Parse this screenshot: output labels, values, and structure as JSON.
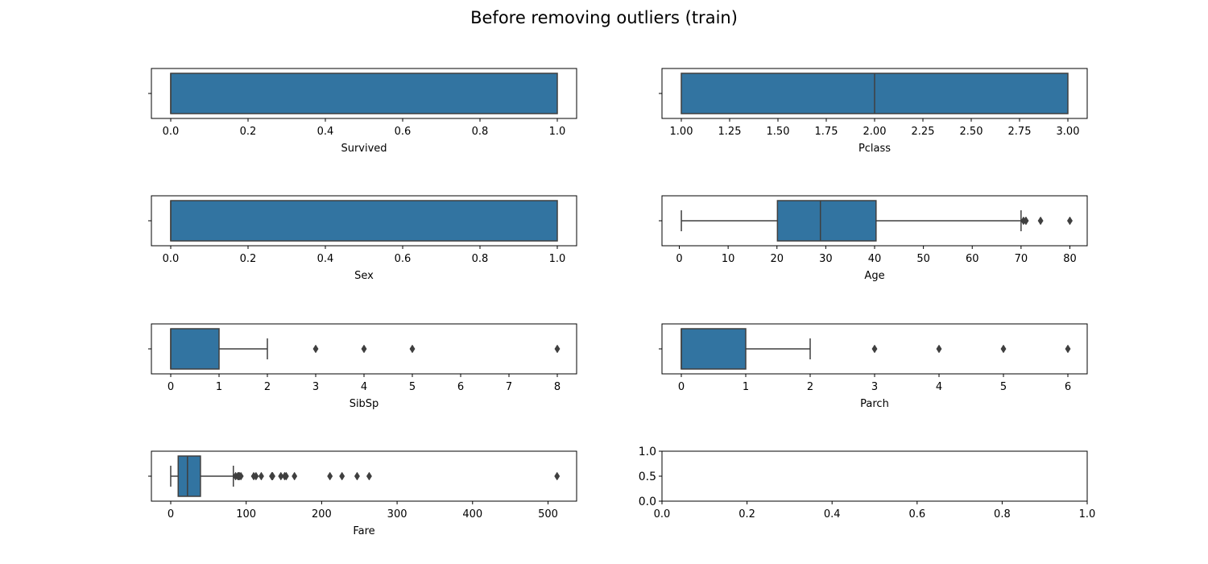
{
  "figure": {
    "title": "Before removing outliers (train)"
  },
  "colors": {
    "box_fill": "#3274a1",
    "line": "#3f3f3f",
    "axis": "#000000",
    "background": "#ffffff"
  },
  "chart_data": [
    {
      "type": "box",
      "xlabel": "Survived",
      "xlim": [
        -0.05,
        1.05
      ],
      "ticks": [
        0.0,
        0.2,
        0.4,
        0.6,
        0.8,
        1.0
      ],
      "tick_labels": [
        "0.0",
        "0.2",
        "0.4",
        "0.6",
        "0.8",
        "1.0"
      ],
      "box": {
        "whisker_low": 0,
        "q1": 0,
        "median": 0,
        "q3": 1,
        "whisker_high": 1
      },
      "outliers": []
    },
    {
      "type": "box",
      "xlabel": "Pclass",
      "xlim": [
        0.9,
        3.1
      ],
      "ticks": [
        1.0,
        1.25,
        1.5,
        1.75,
        2.0,
        2.25,
        2.5,
        2.75,
        3.0
      ],
      "tick_labels": [
        "1.00",
        "1.25",
        "1.50",
        "1.75",
        "2.00",
        "2.25",
        "2.50",
        "2.75",
        "3.00"
      ],
      "box": {
        "whisker_low": 1,
        "q1": 1,
        "median": 2,
        "q3": 3,
        "whisker_high": 3
      },
      "outliers": []
    },
    {
      "type": "box",
      "xlabel": "Sex",
      "xlim": [
        -0.05,
        1.05
      ],
      "ticks": [
        0.0,
        0.2,
        0.4,
        0.6,
        0.8,
        1.0
      ],
      "tick_labels": [
        "0.0",
        "0.2",
        "0.4",
        "0.6",
        "0.8",
        "1.0"
      ],
      "box": {
        "whisker_low": 0,
        "q1": 0,
        "median": 0,
        "q3": 1,
        "whisker_high": 1
      },
      "outliers": []
    },
    {
      "type": "box",
      "xlabel": "Age",
      "xlim": [
        -3.55,
        83.55
      ],
      "ticks": [
        0,
        10,
        20,
        30,
        40,
        50,
        60,
        70,
        80
      ],
      "tick_labels": [
        "0",
        "10",
        "20",
        "30",
        "40",
        "50",
        "60",
        "70",
        "80"
      ],
      "box": {
        "whisker_low": 0.42,
        "q1": 20.1,
        "median": 28.9,
        "q3": 40.3,
        "whisker_high": 70
      },
      "outliers": [
        70.5,
        71,
        71,
        74,
        80
      ]
    },
    {
      "type": "box",
      "xlabel": "SibSp",
      "xlim": [
        -0.4,
        8.4
      ],
      "ticks": [
        0,
        1,
        2,
        3,
        4,
        5,
        6,
        7,
        8
      ],
      "tick_labels": [
        "0",
        "1",
        "2",
        "3",
        "4",
        "5",
        "6",
        "7",
        "8"
      ],
      "box": {
        "whisker_low": 0,
        "q1": 0,
        "median": 0,
        "q3": 1,
        "whisker_high": 2
      },
      "outliers": [
        3,
        4,
        5,
        8
      ]
    },
    {
      "type": "box",
      "xlabel": "Parch",
      "xlim": [
        -0.3,
        6.3
      ],
      "ticks": [
        0,
        1,
        2,
        3,
        4,
        5,
        6
      ],
      "tick_labels": [
        "0",
        "1",
        "2",
        "3",
        "4",
        "5",
        "6"
      ],
      "box": {
        "whisker_low": 0,
        "q1": 0,
        "median": 0,
        "q3": 1,
        "whisker_high": 2
      },
      "outliers": [
        3,
        4,
        5,
        6
      ]
    },
    {
      "type": "box",
      "xlabel": "Fare",
      "xlim": [
        -25.6,
        537.9
      ],
      "ticks": [
        0,
        100,
        200,
        300,
        400,
        500
      ],
      "tick_labels": [
        "0",
        "100",
        "200",
        "300",
        "400",
        "500"
      ],
      "box": {
        "whisker_low": 0,
        "q1": 9.9,
        "median": 22.2,
        "q3": 39.4,
        "whisker_high": 83
      },
      "outliers": [
        86,
        89,
        90,
        91,
        93,
        110,
        113,
        120,
        134,
        135,
        146,
        151,
        153,
        164,
        211,
        227,
        247,
        263,
        512
      ]
    },
    {
      "type": "empty",
      "xlabel": "",
      "xlim": [
        0,
        1
      ],
      "ylim": [
        0,
        1
      ],
      "ticks": [
        0.0,
        0.2,
        0.4,
        0.6,
        0.8,
        1.0
      ],
      "tick_labels": [
        "0.0",
        "0.2",
        "0.4",
        "0.6",
        "0.8",
        "1.0"
      ],
      "yticks": [
        0.0,
        0.5,
        1.0
      ],
      "ytick_labels": [
        "0.0",
        "0.5",
        "1.0"
      ]
    }
  ]
}
